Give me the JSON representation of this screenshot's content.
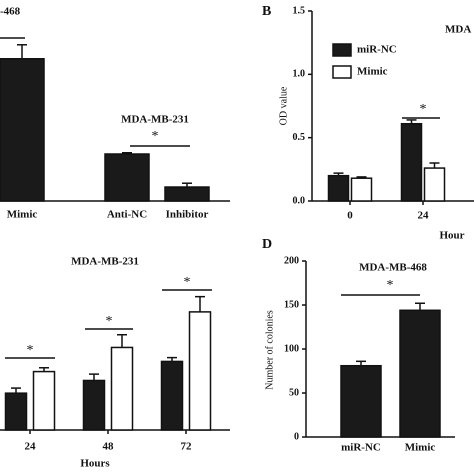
{
  "chart_data": [
    {
      "type": "bar",
      "title": "-468",
      "subtitle": "MDA-MB-231",
      "annotation": "*",
      "categories": [
        "Mimic",
        "Anti-NC",
        "Inhibitor"
      ],
      "values": [
        1.12,
        0.37,
        0.11
      ],
      "errors": [
        0.11,
        0.01,
        0.03
      ],
      "color": "#1a1a1a"
    },
    {
      "type": "bar",
      "panel": "B",
      "title": "MDA",
      "ylabel": "OD value",
      "xlabel": "Hour",
      "annotation": "*",
      "categories": [
        "0",
        "24"
      ],
      "series": [
        {
          "name": "miR-NC",
          "color": "#1a1a1a",
          "values": [
            0.2,
            0.61
          ],
          "errors": [
            0.02,
            0.03
          ]
        },
        {
          "name": "Mimic",
          "color": "#ffffff",
          "values": [
            0.18,
            0.26
          ],
          "errors": [
            0.01,
            0.04
          ]
        }
      ],
      "ylim": [
        0,
        1.5
      ],
      "yticks": [
        {
          "value": 0,
          "label": "0.0"
        },
        {
          "value": 0.5,
          "label": "0.5"
        },
        {
          "value": 1,
          "label": "1.0"
        },
        {
          "value": 1.5,
          "label": "1.5"
        }
      ]
    },
    {
      "type": "bar",
      "title": "MDA-MB-231",
      "xlabel": "Hours",
      "annotation": "*",
      "categories": [
        "24",
        "48",
        "72"
      ],
      "series": [
        {
          "color": "#1a1a1a",
          "values": [
            0.29,
            0.39,
            0.54
          ],
          "errors": [
            0.04,
            0.05,
            0.03
          ]
        },
        {
          "color": "#ffffff",
          "values": [
            0.46,
            0.65,
            0.93
          ],
          "errors": [
            0.03,
            0.1,
            0.12
          ]
        }
      ]
    },
    {
      "type": "bar",
      "panel": "D",
      "title": "MDA-MB-468",
      "ylabel": "Number of colonies",
      "annotation": "*",
      "categories": [
        "miR-NC",
        "Mimic"
      ],
      "values": [
        81,
        144
      ],
      "errors": [
        5,
        8
      ],
      "color": "#1a1a1a",
      "ylim": [
        0,
        200
      ],
      "yticks": [
        0,
        50,
        100,
        150,
        200
      ]
    }
  ]
}
